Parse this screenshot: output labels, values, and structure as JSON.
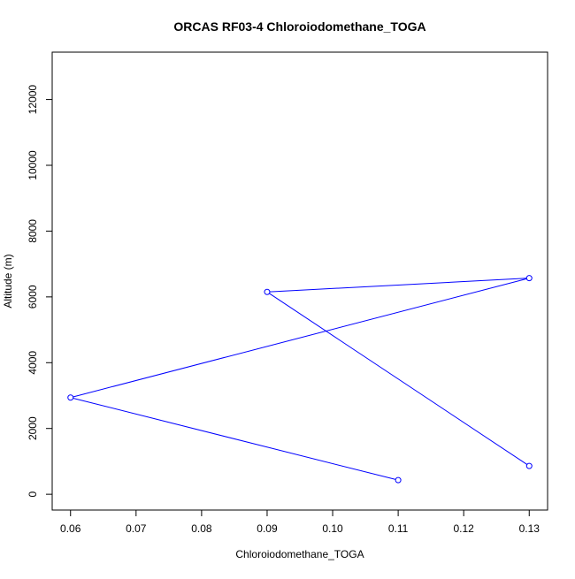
{
  "chart_data": {
    "type": "line",
    "title": "ORCAS RF03-4 Chloroiodomethane_TOGA",
    "xlabel": "Chloroiodomethane_TOGA",
    "ylabel": "Altitude (m)",
    "xlim": [
      0.0572,
      0.1328
    ],
    "ylim": [
      -480,
      13440
    ],
    "x_ticks": [
      0.06,
      0.07,
      0.08,
      0.09,
      0.1,
      0.11,
      0.12,
      0.13
    ],
    "x_tick_labels": [
      "0.06",
      "0.07",
      "0.08",
      "0.09",
      "0.10",
      "0.11",
      "0.12",
      "0.13"
    ],
    "y_ticks": [
      0,
      2000,
      4000,
      6000,
      8000,
      10000,
      12000
    ],
    "y_tick_labels": [
      "0",
      "2000",
      "4000",
      "6000",
      "8000",
      "10000",
      "12000"
    ],
    "grid": false,
    "legend": "none",
    "series": [
      {
        "color": "#0000ff",
        "marker": "open-circle",
        "points": [
          {
            "x": 0.11,
            "y": 430
          },
          {
            "x": 0.06,
            "y": 2940
          },
          {
            "x": 0.13,
            "y": 6570
          },
          {
            "x": 0.09,
            "y": 6150
          },
          {
            "x": 0.13,
            "y": 860
          }
        ]
      }
    ]
  }
}
